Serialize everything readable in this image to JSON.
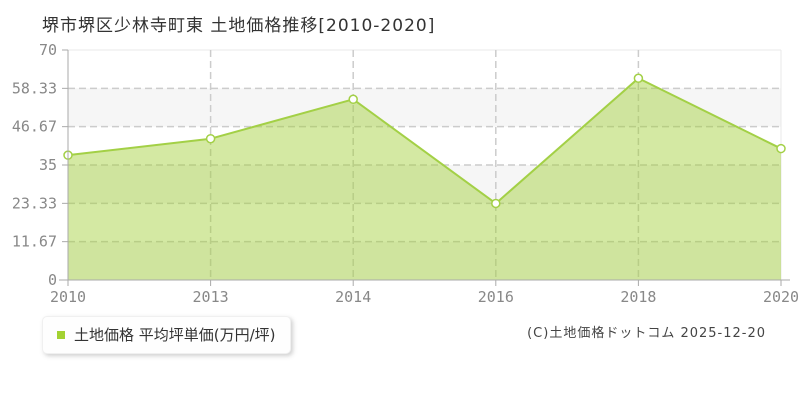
{
  "title": "堺市堺区少林寺町東 土地価格推移[2010-2020]",
  "legend": {
    "label": "土地価格 平均坪単価(万円/坪)",
    "marker_color": "#a3d232"
  },
  "copyright": "(C)土地価格ドットコム 2025-12-20",
  "chart_data": {
    "type": "area",
    "title": "堺市堺区少林寺町東 土地価格推移[2010-2020]",
    "categories": [
      "2010",
      "2013",
      "2014",
      "2016",
      "2018",
      "2020"
    ],
    "series": [
      {
        "name": "土地価格 平均坪単価(万円/坪)",
        "values": [
          38,
          43,
          55,
          23.3,
          61.4,
          40
        ]
      }
    ],
    "xlabel": "",
    "ylabel": "",
    "ylim": [
      0,
      70
    ],
    "y_ticks": [
      70,
      58.33,
      46.67,
      35,
      23.33,
      11.67,
      0
    ],
    "y_tick_labels": [
      "70",
      "58.33",
      "46.67",
      "35",
      "23.33",
      "11.67",
      "0"
    ],
    "grid": "dashed",
    "plot_bands_alternating": true,
    "legend_position": "bottom-left",
    "colors": {
      "line": "#a3d046",
      "fill": "rgba(160,206,50,0.45)",
      "marker_fill": "#ffffff",
      "band": "#f6f6f6",
      "grid": "#cccccc",
      "axis": "#aaaaaa",
      "border": "#e8e8e8",
      "tick_label": "#888888"
    }
  }
}
